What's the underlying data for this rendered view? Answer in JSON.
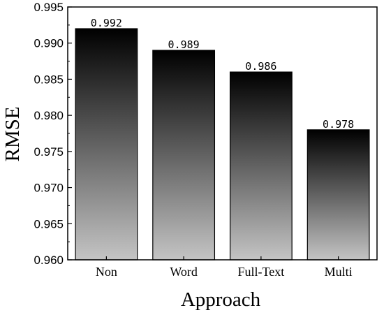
{
  "chart_data": {
    "type": "bar",
    "title": "",
    "xlabel": "Approach",
    "ylabel": "RMSE",
    "categories": [
      "Non",
      "Word",
      "Full-Text",
      "Multi"
    ],
    "values": [
      0.992,
      0.989,
      0.986,
      0.978
    ],
    "data_labels": [
      "0.992",
      "0.989",
      "0.986",
      "0.978"
    ],
    "ylim": [
      0.96,
      0.995
    ],
    "yticks": [
      "0.960",
      "0.965",
      "0.970",
      "0.975",
      "0.980",
      "0.985",
      "0.990",
      "0.995"
    ],
    "grid": false,
    "legend": "none",
    "bar_fill": {
      "top": "#000000",
      "bottom": "#c4c4c4"
    }
  }
}
